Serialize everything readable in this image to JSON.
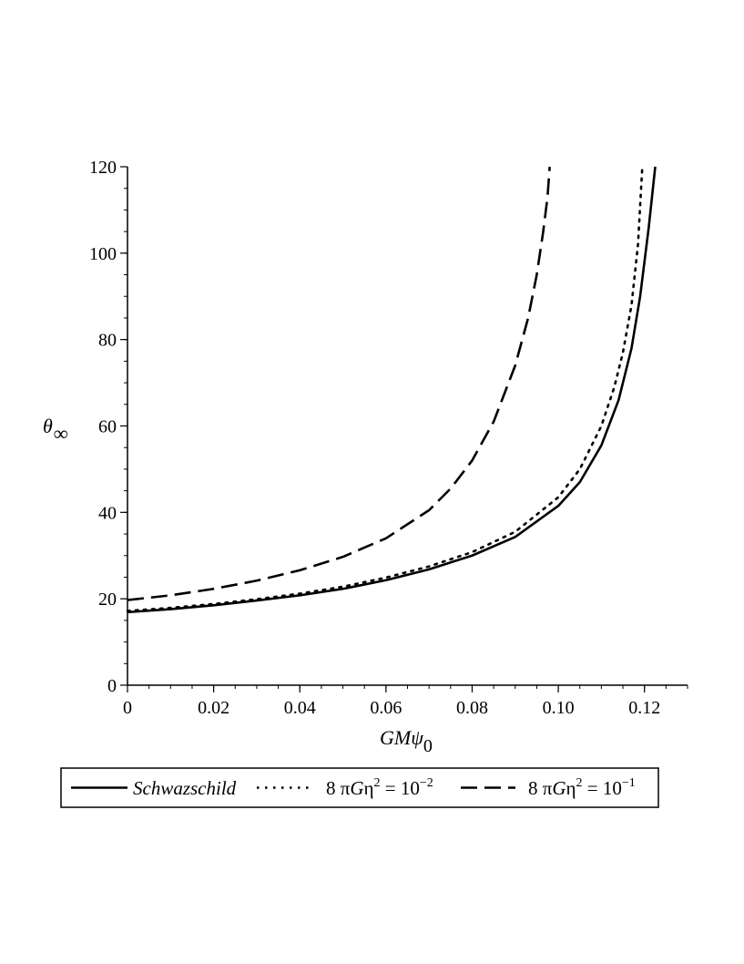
{
  "chart_data": {
    "type": "line",
    "title": "",
    "xlabel": "GMψ",
    "xlabel_sub": "0",
    "ylabel": "θ",
    "ylabel_sub": "∞",
    "xlim": [
      0,
      0.13
    ],
    "ylim": [
      0,
      120
    ],
    "x_ticks": [
      0,
      0.02,
      0.04,
      0.06,
      0.08,
      0.1,
      0.12
    ],
    "x_tick_labels": [
      "0",
      "0.02",
      "0.04",
      "0.06",
      "0.08",
      "0.10",
      "0.12"
    ],
    "y_ticks": [
      0,
      20,
      40,
      60,
      80,
      100,
      120
    ],
    "y_tick_labels": [
      "0",
      "20",
      "40",
      "60",
      "80",
      "100",
      "120"
    ],
    "grid": false,
    "legend_position": "bottom",
    "colors": {
      "line": "#000000",
      "background": "#ffffff"
    },
    "series": [
      {
        "name": "Schwazschild",
        "style": "solid",
        "x": [
          0,
          0.01,
          0.02,
          0.03,
          0.04,
          0.05,
          0.06,
          0.07,
          0.08,
          0.09,
          0.1,
          0.105,
          0.11,
          0.114,
          0.117,
          0.119,
          0.121,
          0.1225
        ],
        "y": [
          16.9,
          17.6,
          18.5,
          19.6,
          20.8,
          22.3,
          24.3,
          26.8,
          30.0,
          34.3,
          41.5,
          47.0,
          55.5,
          66.0,
          78.0,
          90.0,
          106.0,
          120.0
        ]
      },
      {
        "name": "8 πGη2 = 10−2",
        "name_parts": {
          "pre": "8 ",
          "pi": "π",
          "g": "G",
          "eta": "η",
          "eta_sup": "2",
          "eq": " = 10",
          "exp": "−2"
        },
        "style": "dotted",
        "x": [
          0,
          0.01,
          0.02,
          0.03,
          0.04,
          0.05,
          0.06,
          0.07,
          0.08,
          0.09,
          0.1,
          0.105,
          0.11,
          0.113,
          0.115,
          0.117,
          0.1185,
          0.1195
        ],
        "y": [
          17.2,
          17.9,
          18.8,
          19.9,
          21.2,
          22.8,
          24.9,
          27.5,
          30.8,
          35.5,
          43.5,
          50.0,
          60.0,
          69.0,
          77.0,
          88.0,
          102.0,
          120.0
        ]
      },
      {
        "name": "8 πGη2 = 10−1",
        "name_parts": {
          "pre": "8 ",
          "pi": "π",
          "g": "G",
          "eta": "η",
          "eta_sup": "2",
          "eq": " = 10",
          "exp": "−1"
        },
        "style": "dashed",
        "x": [
          0,
          0.01,
          0.02,
          0.03,
          0.04,
          0.05,
          0.06,
          0.07,
          0.075,
          0.08,
          0.085,
          0.09,
          0.093,
          0.095,
          0.0965,
          0.0975,
          0.098
        ],
        "y": [
          19.7,
          20.8,
          22.3,
          24.2,
          26.6,
          29.7,
          34.0,
          40.5,
          45.5,
          52.0,
          61.0,
          74.0,
          85.0,
          95.0,
          105.0,
          113.0,
          120.0
        ]
      }
    ]
  }
}
